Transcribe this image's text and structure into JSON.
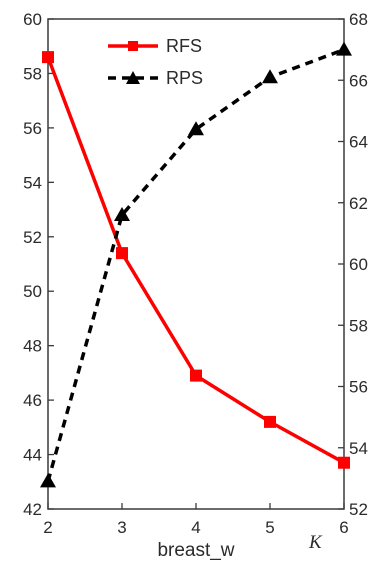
{
  "chart_data": {
    "type": "line",
    "xlabel": "breast_w",
    "corner_label": "K",
    "x": [
      2,
      3,
      4,
      5,
      6
    ],
    "x_ticks": [
      "2",
      "3",
      "4",
      "5",
      "6"
    ],
    "xlim": [
      2,
      6
    ],
    "left_axis": {
      "ylim": [
        42,
        60
      ],
      "ticks": [
        "42",
        "44",
        "46",
        "48",
        "50",
        "52",
        "54",
        "56",
        "58",
        "60"
      ]
    },
    "right_axis": {
      "ylim": [
        52,
        68
      ],
      "ticks": [
        "52",
        "54",
        "56",
        "58",
        "60",
        "62",
        "64",
        "66",
        "68"
      ]
    },
    "series": [
      {
        "name": "RFS",
        "axis": "left",
        "values": [
          58.6,
          51.4,
          46.9,
          45.2,
          43.7
        ],
        "color": "#ff0000",
        "line_style": "solid",
        "marker": "square"
      },
      {
        "name": "RPS",
        "axis": "right",
        "values": [
          52.9,
          61.6,
          64.4,
          66.1,
          67.0
        ],
        "color": "#000000",
        "line_style": "dashed",
        "marker": "triangle"
      }
    ],
    "legend": "top-center",
    "grid": false
  }
}
